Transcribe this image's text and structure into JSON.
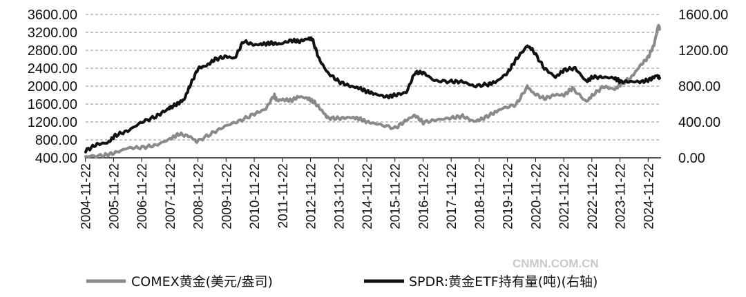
{
  "chart_data": {
    "type": "line",
    "left_axis": {
      "ticks": [
        "400.00",
        "800.00",
        "1200.00",
        "1600.00",
        "2000.00",
        "2400.00",
        "2800.00",
        "3200.00",
        "3600.00"
      ],
      "ylim": [
        400,
        3600
      ]
    },
    "right_axis": {
      "ticks": [
        "0.00",
        "400.00",
        "800.00",
        "1200.00",
        "1600.00"
      ],
      "ylim": [
        0,
        1600
      ]
    },
    "x_ticks": [
      "2004-11-22",
      "2005-11-22",
      "2006-11-22",
      "2007-11-22",
      "2008-11-22",
      "2009-11-22",
      "2010-11-22",
      "2011-11-22",
      "2012-11-22",
      "2013-11-22",
      "2014-11-22",
      "2015-11-22",
      "2016-11-22",
      "2017-11-22",
      "2018-11-22",
      "2019-11-22",
      "2020-11-22",
      "2021-11-22",
      "2022-11-22",
      "2023-11-22",
      "2024-11-22"
    ],
    "grid": "horizontal dashed",
    "legend_position": "bottom",
    "series": [
      {
        "name": "COMEX黄金(美元/盎司)",
        "axis": "left",
        "color": "#8a8a8a",
        "x": [
          2004.9,
          2005.5,
          2005.9,
          2006.4,
          2006.9,
          2007.4,
          2007.9,
          2008.2,
          2008.6,
          2008.85,
          2009.4,
          2009.9,
          2010.4,
          2010.9,
          2011.3,
          2011.6,
          2011.7,
          2011.9,
          2012.2,
          2012.5,
          2012.8,
          2013.0,
          2013.3,
          2013.5,
          2013.9,
          2014.3,
          2014.6,
          2014.9,
          2015.3,
          2015.9,
          2016.3,
          2016.6,
          2016.9,
          2017.4,
          2017.9,
          2018.3,
          2018.7,
          2019.0,
          2019.4,
          2019.7,
          2020.2,
          2020.6,
          2020.8,
          2021.2,
          2021.6,
          2021.9,
          2022.2,
          2022.7,
          2022.9,
          2023.3,
          2023.7,
          2023.9,
          2024.3,
          2024.6,
          2024.9,
          2025.1,
          2025.25,
          2025.3
        ],
        "values": [
          430,
          450,
          500,
          620,
          630,
          680,
          820,
          930,
          880,
          760,
          950,
          1120,
          1230,
          1380,
          1490,
          1800,
          1680,
          1700,
          1680,
          1770,
          1720,
          1660,
          1450,
          1290,
          1280,
          1300,
          1280,
          1200,
          1150,
          1060,
          1240,
          1350,
          1190,
          1250,
          1290,
          1330,
          1210,
          1270,
          1400,
          1500,
          1590,
          1990,
          1850,
          1720,
          1810,
          1800,
          1950,
          1650,
          1790,
          1990,
          1930,
          2030,
          2200,
          2450,
          2650,
          2920,
          3350,
          3280
        ]
      },
      {
        "name": "SPDR:黄金ETF持有量(吨)(右轴)",
        "axis": "right",
        "color": "#111111",
        "x": [
          2004.9,
          2005.3,
          2005.7,
          2005.95,
          2006.4,
          2006.9,
          2007.4,
          2007.8,
          2007.9,
          2008.2,
          2008.4,
          2008.6,
          2008.9,
          2009.2,
          2009.5,
          2009.9,
          2010.2,
          2010.5,
          2010.9,
          2011.2,
          2011.5,
          2011.8,
          2012.2,
          2012.5,
          2012.8,
          2012.95,
          2013.2,
          2013.5,
          2013.9,
          2014.3,
          2014.6,
          2014.9,
          2015.2,
          2015.6,
          2015.9,
          2016.3,
          2016.6,
          2016.9,
          2017.3,
          2017.9,
          2018.3,
          2018.7,
          2019.2,
          2019.5,
          2019.9,
          2020.2,
          2020.6,
          2020.8,
          2021.2,
          2021.6,
          2021.9,
          2022.3,
          2022.7,
          2022.9,
          2023.3,
          2023.7,
          2023.9,
          2024.3,
          2024.7,
          2025.0,
          2025.2,
          2025.3
        ],
        "values": [
          80,
          150,
          170,
          250,
          300,
          400,
          460,
          540,
          560,
          610,
          650,
          800,
          1000,
          1030,
          1100,
          1130,
          1110,
          1300,
          1260,
          1270,
          1280,
          1270,
          1310,
          1300,
          1330,
          1330,
          1100,
          950,
          850,
          800,
          780,
          740,
          710,
          680,
          700,
          730,
          950,
          950,
          860,
          850,
          850,
          800,
          820,
          850,
          950,
          1100,
          1250,
          1200,
          1000,
          900,
          980,
          1000,
          850,
          900,
          900,
          890,
          850,
          850,
          850,
          880,
          920,
          890
        ]
      }
    ]
  },
  "legend": {
    "series1_label": "COMEX黄金(美元/盎司)",
    "series2_label": "SPDR:黄金ETF持有量(吨)(右轴)"
  },
  "watermark": "CNMN.COM.CN"
}
